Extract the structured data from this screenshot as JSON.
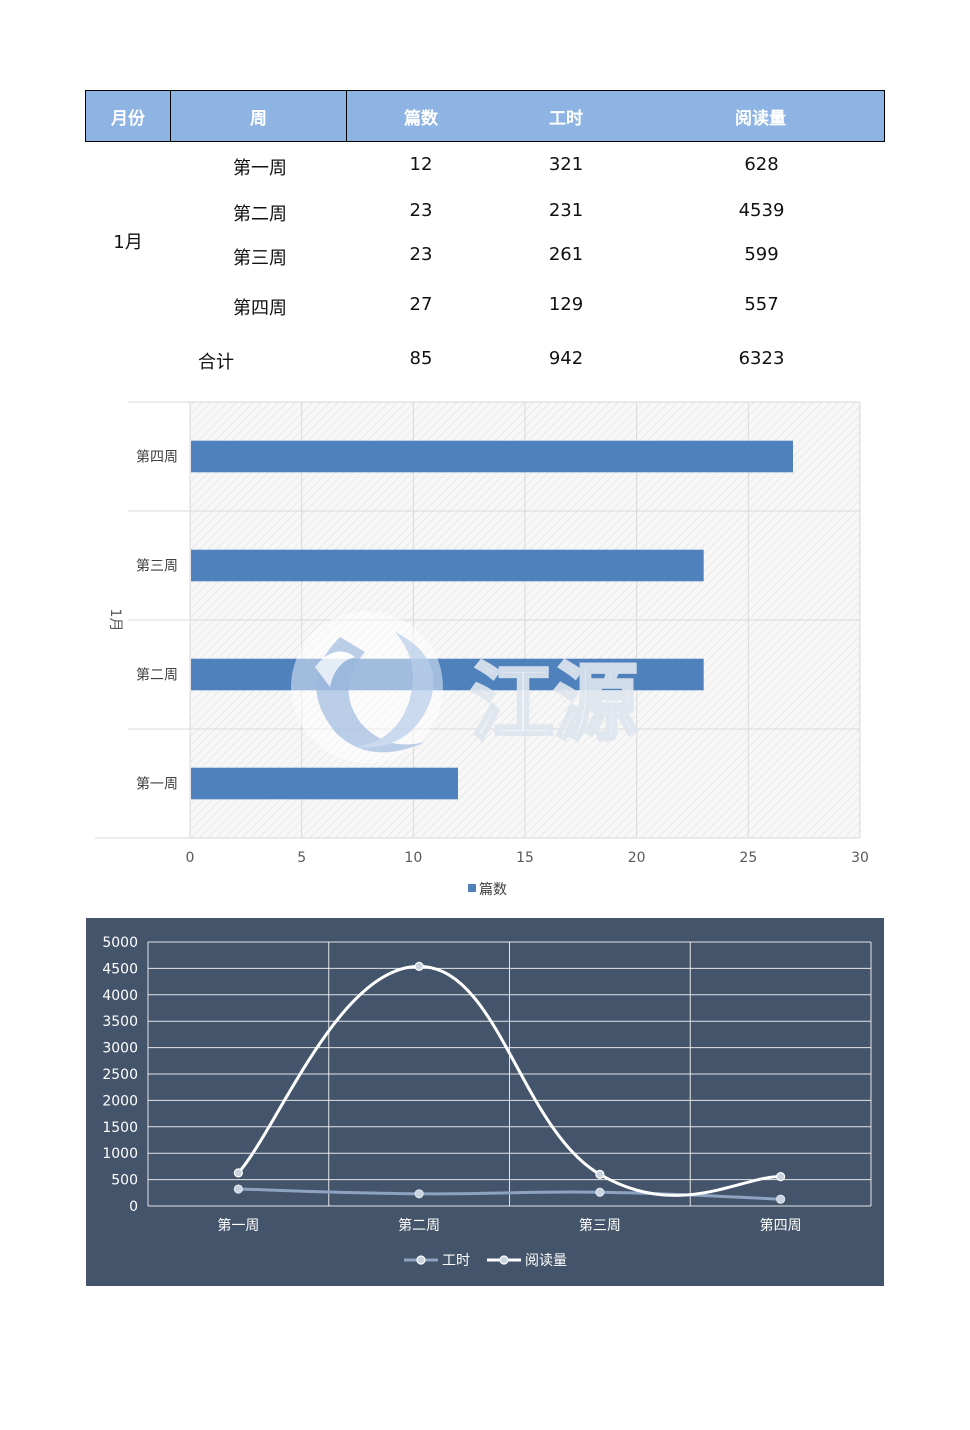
{
  "table": {
    "headers": [
      "月份",
      "周",
      "篇数",
      "工时",
      "阅读量"
    ],
    "month": "1月",
    "rows": [
      {
        "week": "第一周",
        "pian": "12",
        "gong": "321",
        "read": "628"
      },
      {
        "week": "第二周",
        "pian": "23",
        "gong": "231",
        "read": "4539"
      },
      {
        "week": "第三周",
        "pian": "23",
        "gong": "261",
        "read": "599"
      },
      {
        "week": "第四周",
        "pian": "27",
        "gong": "129",
        "read": "557"
      }
    ],
    "total": {
      "label": "合计",
      "pian": "85",
      "gong": "942",
      "read": "6323"
    }
  },
  "watermark_text": "江源",
  "chart_data": [
    {
      "type": "bar",
      "orientation": "horizontal",
      "group_label": "1月",
      "categories": [
        "第一周",
        "第二周",
        "第三周",
        "第四周"
      ],
      "series": [
        {
          "name": "篇数",
          "values": [
            12,
            23,
            23,
            27
          ],
          "color": "#4f81bd"
        }
      ],
      "xlim": [
        0,
        30
      ],
      "xticks": [
        0,
        5,
        10,
        15,
        20,
        25,
        30
      ],
      "grid": true,
      "legend": "bottom"
    },
    {
      "type": "line",
      "categories": [
        "第一周",
        "第二周",
        "第三周",
        "第四周"
      ],
      "series": [
        {
          "name": "工时",
          "values": [
            321,
            231,
            261,
            129
          ],
          "color": "#8ea3c2"
        },
        {
          "name": "阅读量",
          "values": [
            628,
            4539,
            599,
            557
          ],
          "color": "#ffffff"
        }
      ],
      "ylim": [
        0,
        5000
      ],
      "yticks": [
        0,
        500,
        1000,
        1500,
        2000,
        2500,
        3000,
        3500,
        4000,
        4500,
        5000
      ],
      "background": "#44546a",
      "grid": true,
      "smooth": true,
      "legend": "bottom"
    }
  ]
}
